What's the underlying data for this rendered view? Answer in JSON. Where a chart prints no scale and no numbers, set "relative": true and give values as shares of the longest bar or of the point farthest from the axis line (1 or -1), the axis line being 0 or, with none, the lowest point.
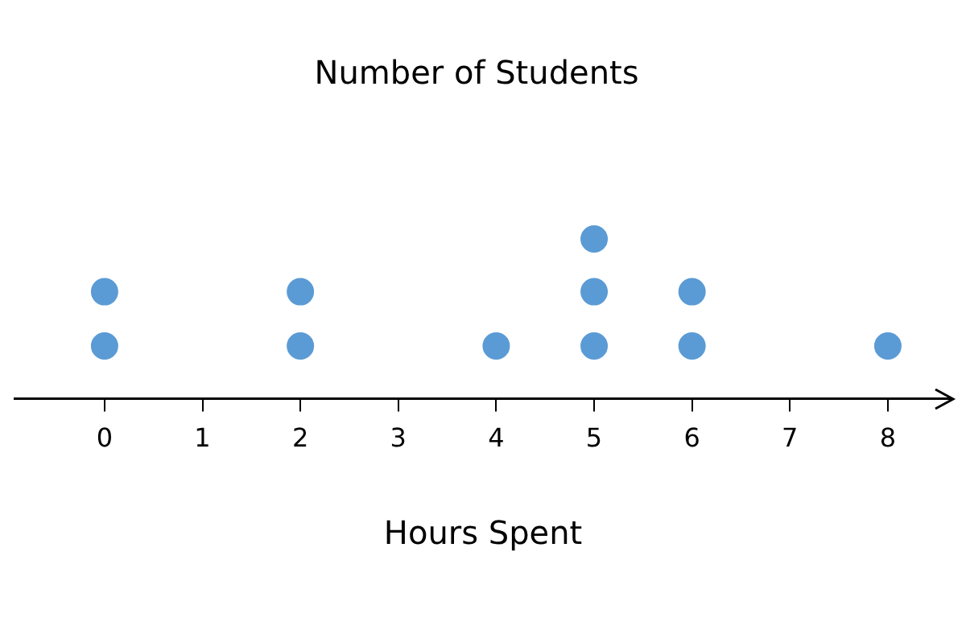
{
  "chart_data": {
    "type": "scatter",
    "title": "Number of Students",
    "xlabel": "Hours Spent",
    "relative": true,
    "marker": "circle",
    "grid": false,
    "legend": false,
    "xlim": [
      -0.92,
      8.65
    ],
    "xticks": [
      0,
      1,
      2,
      3,
      4,
      5,
      6,
      7,
      8
    ],
    "series": [
      {
        "color": "#5b9bd5",
        "x": [
          0,
          0,
          2,
          2,
          4,
          5,
          5,
          5,
          6,
          6,
          8
        ],
        "values": [
          0.33,
          0.67,
          0.33,
          0.67,
          0.33,
          0.33,
          0.67,
          1,
          0.33,
          0.67,
          0.33
        ]
      }
    ]
  }
}
